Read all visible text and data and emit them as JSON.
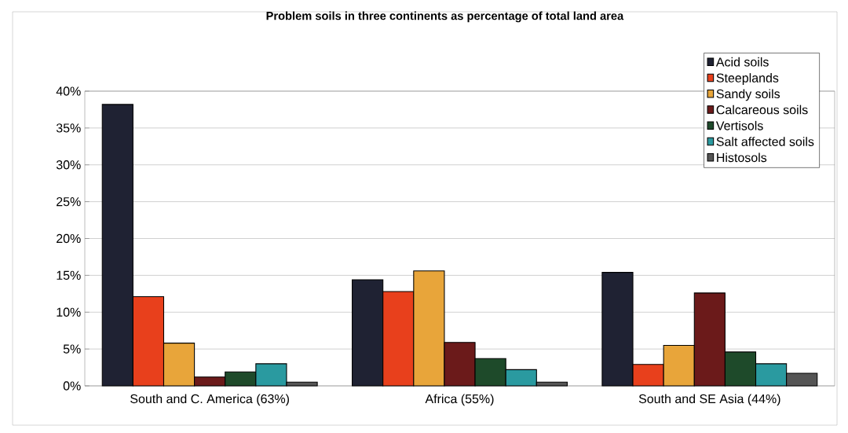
{
  "chart_data": {
    "type": "bar",
    "title": "Problem soils in three continents as percentage of total land area",
    "categories": [
      "South and C.  America (63%)",
      "Africa (55%)",
      "South and SE Asia (44%)"
    ],
    "series": [
      {
        "name": "Acid soils",
        "color": "#1f2233",
        "values": [
          38.2,
          14.4,
          15.4
        ]
      },
      {
        "name": "Steeplands",
        "color": "#e8401c",
        "values": [
          12.1,
          12.8,
          2.9
        ]
      },
      {
        "name": "Sandy soils",
        "color": "#e8a53a",
        "values": [
          5.8,
          15.6,
          5.5
        ]
      },
      {
        "name": "Calcareous soils",
        "color": "#6b1a1a",
        "values": [
          1.2,
          5.9,
          12.6
        ]
      },
      {
        "name": "Vertisols",
        "color": "#1e4a2a",
        "values": [
          1.9,
          3.7,
          4.6
        ]
      },
      {
        "name": "Salt affected soils",
        "color": "#2a9aa0",
        "values": [
          3.0,
          2.2,
          3.0
        ]
      },
      {
        "name": "Histosols",
        "color": "#555555",
        "values": [
          0.5,
          0.5,
          1.7
        ]
      }
    ],
    "ylim": [
      0,
      40
    ],
    "yticks": [
      {
        "value": 0,
        "label": "0%"
      },
      {
        "value": 5,
        "label": "5%"
      },
      {
        "value": 10,
        "label": "10%"
      },
      {
        "value": 15,
        "label": "15%"
      },
      {
        "value": 20,
        "label": "20%"
      },
      {
        "value": 25,
        "label": "25%"
      },
      {
        "value": 30,
        "label": "30%"
      },
      {
        "value": 35,
        "label": "35%"
      },
      {
        "value": 40,
        "label": "40%"
      }
    ],
    "grid": "y",
    "legend": "top right"
  }
}
